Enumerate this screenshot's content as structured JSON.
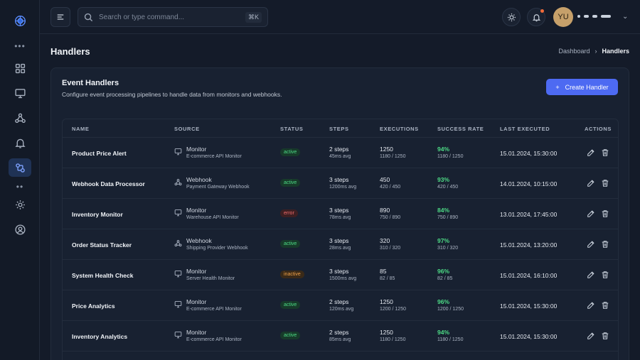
{
  "topbar": {
    "search_placeholder": "Search or type command...",
    "search_shortcut": "⌘K",
    "avatar_initials": "YU"
  },
  "page": {
    "title": "Handlers"
  },
  "breadcrumb": {
    "parent": "Dashboard",
    "current": "Handlers"
  },
  "card": {
    "title": "Event Handlers",
    "subtitle": "Configure event processing pipelines to handle data from monitors and webhooks.",
    "create_label": "Create Handler"
  },
  "table": {
    "headers": {
      "name": "NAME",
      "source": "SOURCE",
      "status": "STATUS",
      "steps": "STEPS",
      "executions": "EXECUTIONS",
      "success": "SUCCESS RATE",
      "last": "LAST EXECUTED",
      "actions": "ACTIONS"
    },
    "rows": [
      {
        "name": "Product Price Alert",
        "source_type": "Monitor",
        "source_name": "E-commerce API Monitor",
        "status": "active",
        "steps": "2 steps",
        "steps_avg": "45ms avg",
        "exec": "1250",
        "exec_detail": "1180 / 1250",
        "rate": "94%",
        "rate_detail": "1180 / 1250",
        "last": "15.01.2024, 15:30:00"
      },
      {
        "name": "Webhook Data Processor",
        "source_type": "Webhook",
        "source_name": "Payment Gateway Webhook",
        "status": "active",
        "steps": "3 steps",
        "steps_avg": "1200ms avg",
        "exec": "450",
        "exec_detail": "420 / 450",
        "rate": "93%",
        "rate_detail": "420 / 450",
        "last": "14.01.2024, 10:15:00"
      },
      {
        "name": "Inventory Monitor",
        "source_type": "Monitor",
        "source_name": "Warehouse API Monitor",
        "status": "error",
        "steps": "3 steps",
        "steps_avg": "78ms avg",
        "exec": "890",
        "exec_detail": "750 / 890",
        "rate": "84%",
        "rate_detail": "750 / 890",
        "last": "13.01.2024, 17:45:00"
      },
      {
        "name": "Order Status Tracker",
        "source_type": "Webhook",
        "source_name": "Shipping Provider Webhook",
        "status": "active",
        "steps": "3 steps",
        "steps_avg": "28ms avg",
        "exec": "320",
        "exec_detail": "310 / 320",
        "rate": "97%",
        "rate_detail": "310 / 320",
        "last": "15.01.2024, 13:20:00"
      },
      {
        "name": "System Health Check",
        "source_type": "Monitor",
        "source_name": "Server Health Monitor",
        "status": "inactive",
        "steps": "3 steps",
        "steps_avg": "1500ms avg",
        "exec": "85",
        "exec_detail": "82 / 85",
        "rate": "96%",
        "rate_detail": "82 / 85",
        "last": "15.01.2024, 16:10:00"
      },
      {
        "name": "Price Analytics",
        "source_type": "Monitor",
        "source_name": "E-commerce API Monitor",
        "status": "active",
        "steps": "2 steps",
        "steps_avg": "120ms avg",
        "exec": "1250",
        "exec_detail": "1200 / 1250",
        "rate": "96%",
        "rate_detail": "1200 / 1250",
        "last": "15.01.2024, 15:30:00"
      },
      {
        "name": "Inventory Analytics",
        "source_type": "Monitor",
        "source_name": "E-commerce API Monitor",
        "status": "active",
        "steps": "2 steps",
        "steps_avg": "85ms avg",
        "exec": "1250",
        "exec_detail": "1180 / 1250",
        "rate": "94%",
        "rate_detail": "1180 / 1250",
        "last": "15.01.2024, 15:30:00"
      }
    ]
  },
  "colors": {
    "accent": "#4d6af2",
    "success": "#4ddc86",
    "error": "#f16c6c",
    "warning": "#f0a24a"
  }
}
